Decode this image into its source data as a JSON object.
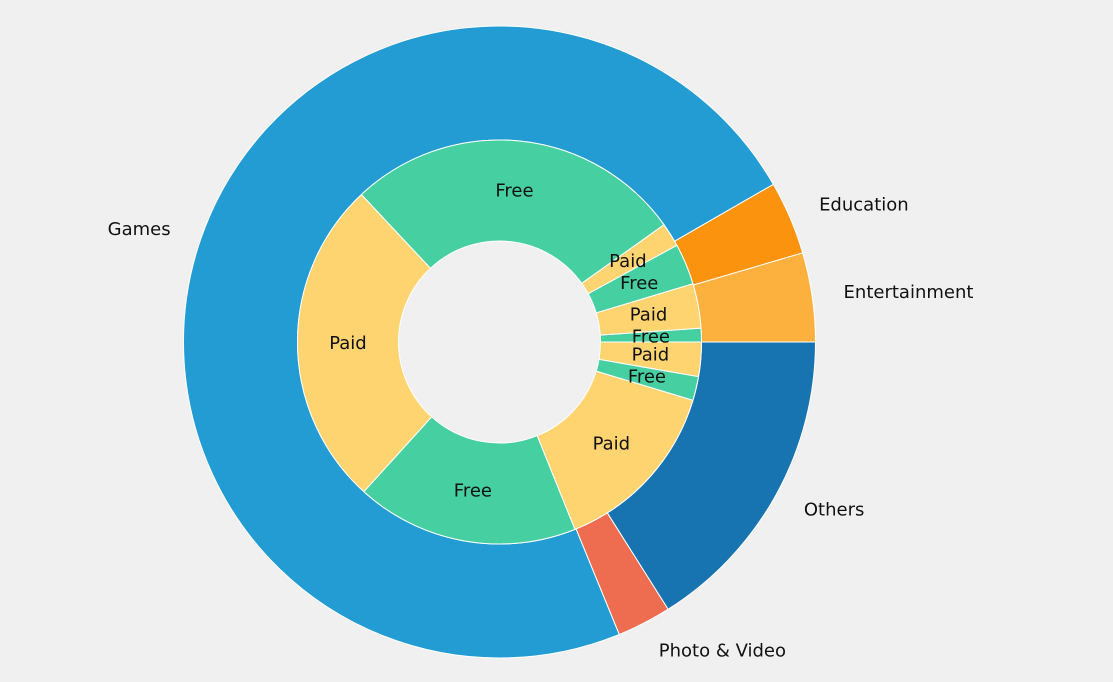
{
  "chart_data": {
    "type": "pie",
    "subtype": "nested-donut",
    "start_angle_deg": 0,
    "direction": "counterclockwise",
    "outer": {
      "categories": [
        "Entertainment",
        "Education",
        "Games",
        "Photo & Video",
        "Others"
      ],
      "values": [
        2.3,
        1.9,
        36.8,
        1.4,
        8.1
      ],
      "colors": [
        "#fcb13e",
        "#fb930f",
        "#239cd4",
        "#ee6d51",
        "#1874b1"
      ]
    },
    "inner": {
      "labels": [
        "Free",
        "Paid",
        "Free",
        "Paid",
        "Free",
        "Paid",
        "Free",
        "Paid",
        "Free",
        "Paid"
      ],
      "parents": [
        "Education",
        "Education",
        "Entertainment",
        "Entertainment",
        "Games",
        "Games",
        "Photo & Video",
        "Photo & Video",
        "Others",
        "Others"
      ],
      "values": [
        0.4,
        1.3,
        1.2,
        0.7,
        9.9,
        9.6,
        6.5,
        5.2,
        0.7,
        1.0
      ],
      "colors": {
        "Free": "#46cfa1",
        "Paid": "#fed471"
      }
    }
  }
}
